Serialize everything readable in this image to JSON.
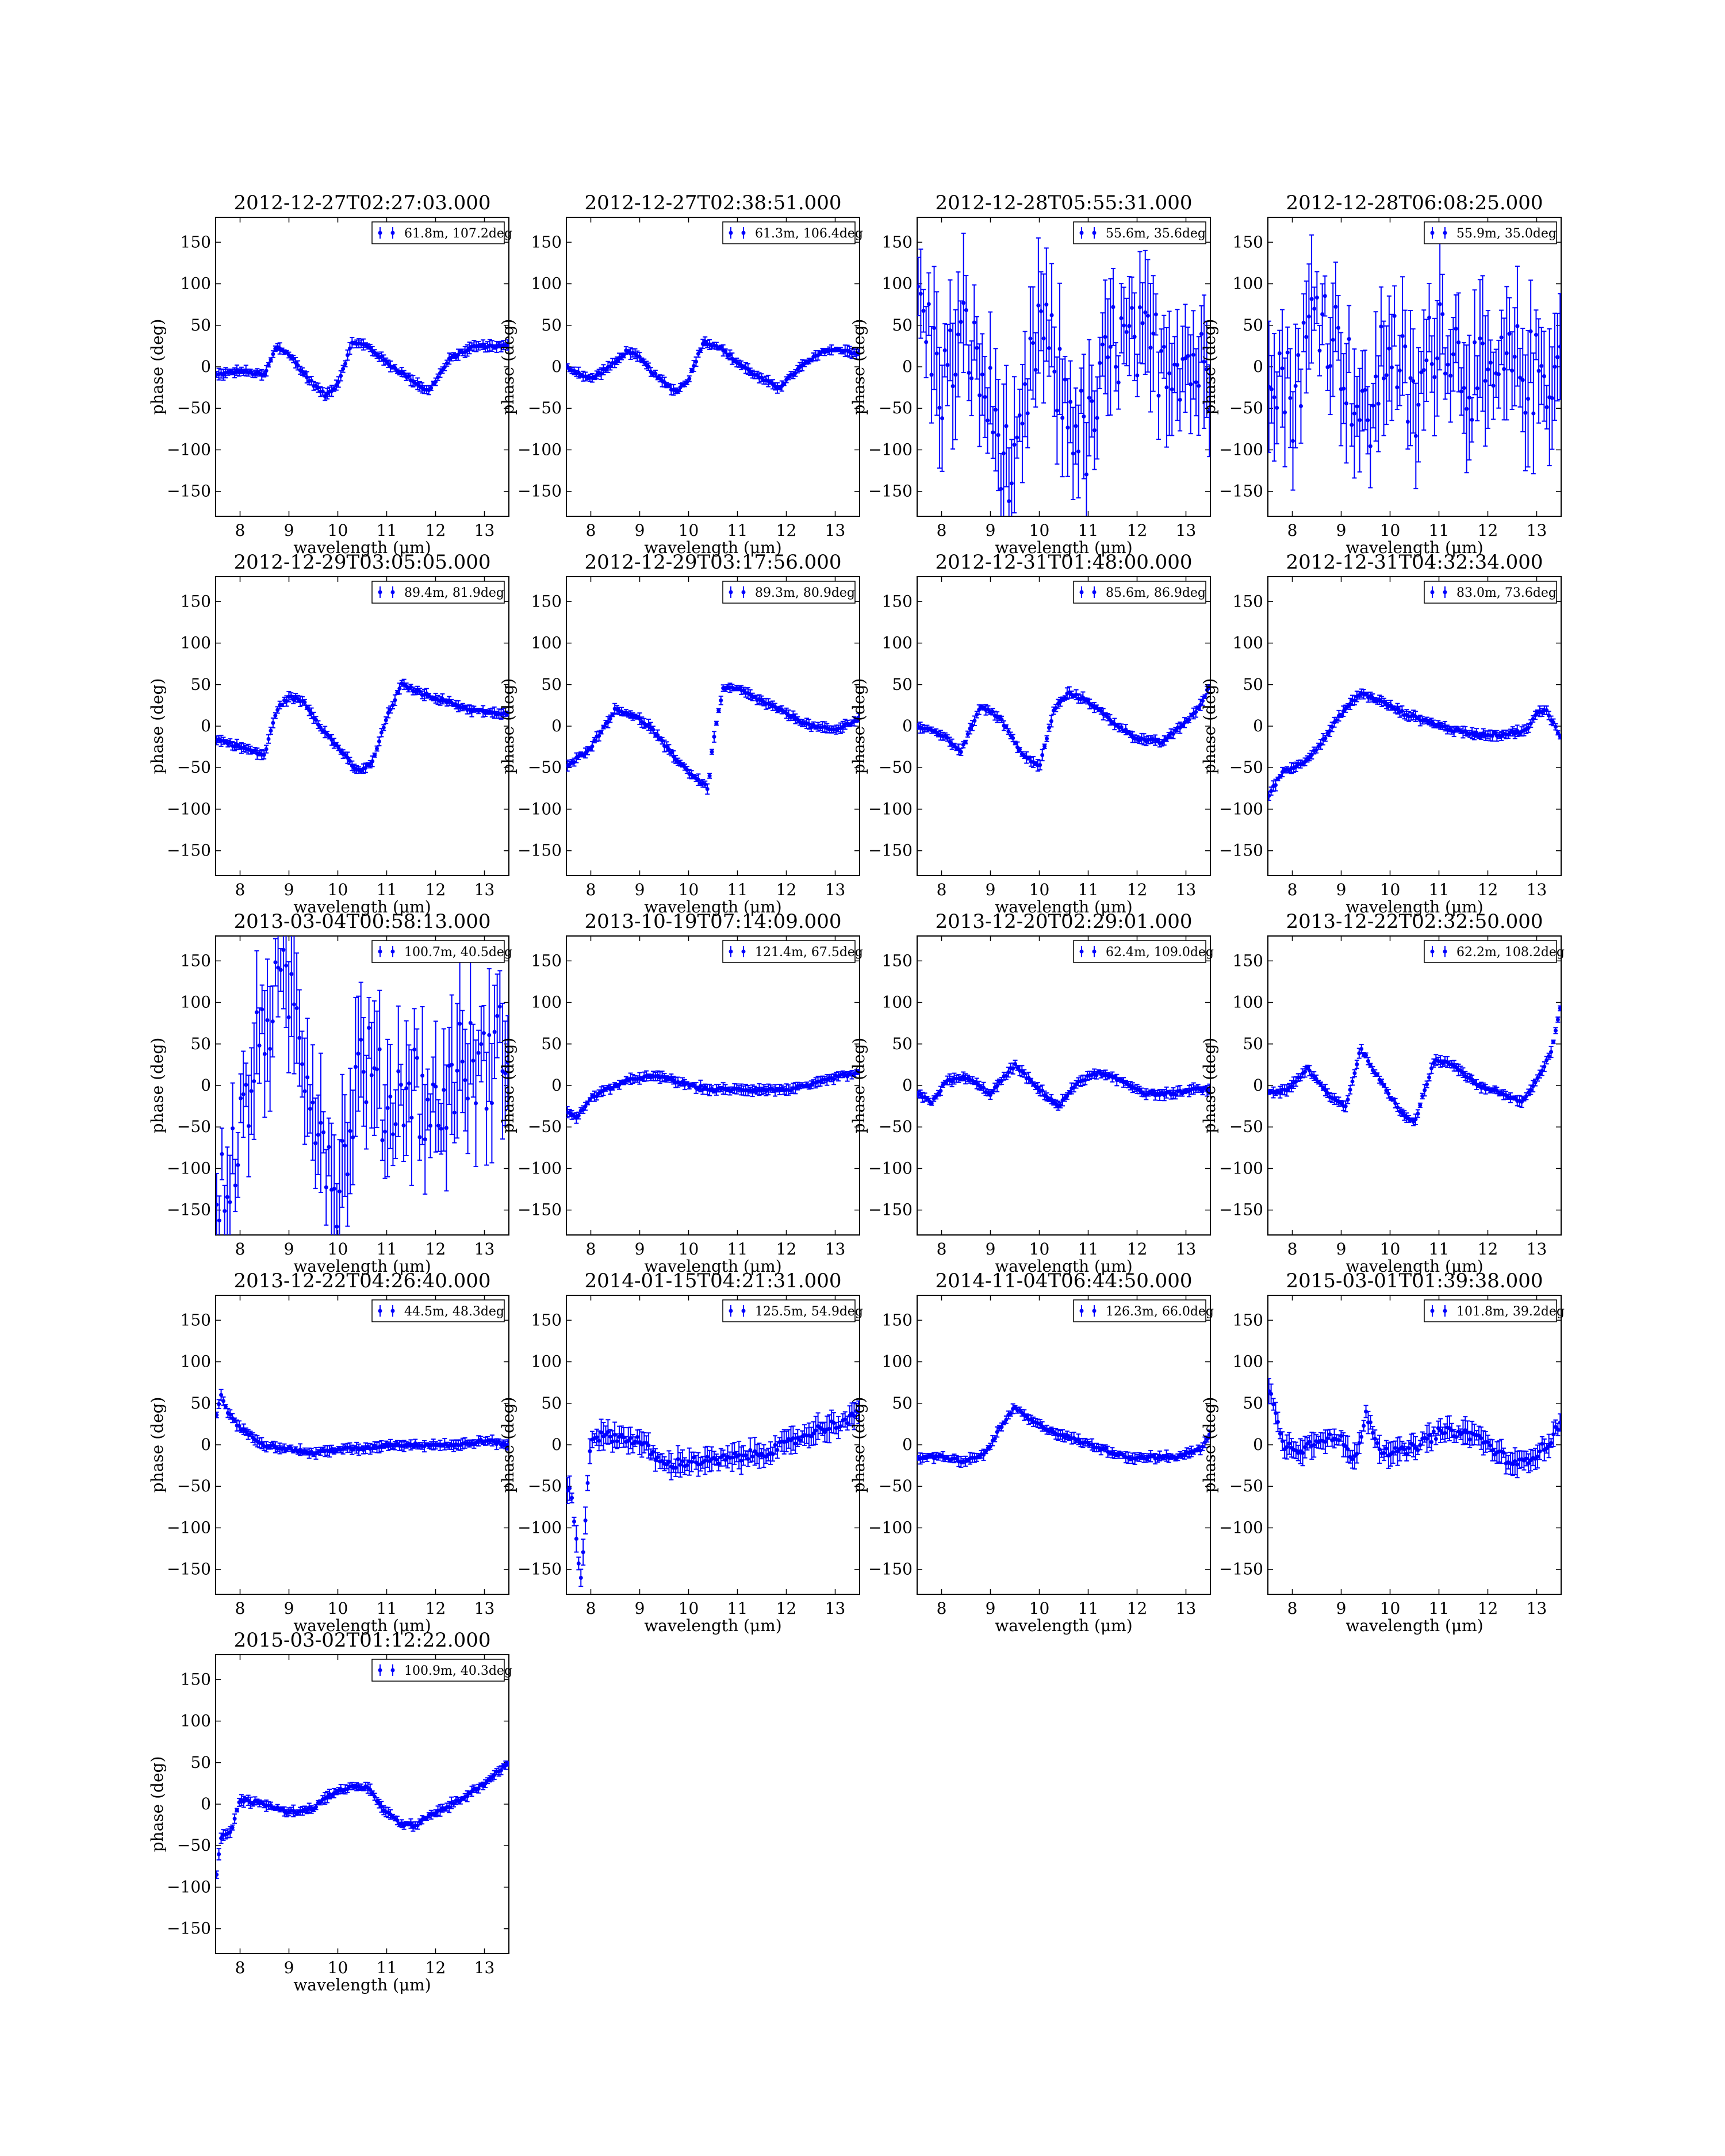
{
  "figure": {
    "xlabel": "wavelength (μm)",
    "ylabel": "phase (deg)",
    "series_color": "#0000ff",
    "xlim": [
      7.5,
      13.5
    ],
    "ylim": [
      -180,
      180
    ],
    "xticks": [
      8,
      9,
      10,
      11,
      12,
      13
    ],
    "yticks": [
      -150,
      -100,
      -50,
      0,
      50,
      100,
      150
    ]
  },
  "chart_data": [
    {
      "type": "scatter",
      "title": "2012-12-27T02:27:03.000",
      "legend": "61.8m, 107.2deg",
      "legend_position": "top-right",
      "error_bars": true,
      "noise": "low",
      "x": [
        7.5,
        8.0,
        8.5,
        8.75,
        9.0,
        9.4,
        9.75,
        10.0,
        10.3,
        10.6,
        11.0,
        11.5,
        11.85,
        12.3,
        12.8,
        13.2,
        13.5
      ],
      "y": [
        -10,
        -5,
        -10,
        25,
        15,
        -15,
        -35,
        -20,
        30,
        25,
        5,
        -15,
        -30,
        10,
        25,
        25,
        25
      ]
    },
    {
      "type": "scatter",
      "title": "2012-12-27T02:38:51.000",
      "legend": "61.3m, 106.4deg",
      "legend_position": "top-right",
      "error_bars": true,
      "noise": "low",
      "x": [
        7.5,
        8.0,
        8.5,
        8.75,
        9.0,
        9.4,
        9.75,
        10.0,
        10.3,
        10.6,
        11.0,
        11.5,
        11.85,
        12.3,
        12.8,
        13.2,
        13.5
      ],
      "y": [
        0,
        -15,
        5,
        20,
        10,
        -15,
        -30,
        -15,
        30,
        25,
        5,
        -15,
        -25,
        0,
        20,
        20,
        15
      ]
    },
    {
      "type": "scatter",
      "title": "2012-12-28T05:55:31.000",
      "legend": "55.6m, 35.6deg",
      "legend_position": "top-right",
      "error_bars": true,
      "noise": "high",
      "x": [
        7.5,
        8.0,
        8.5,
        9.0,
        9.5,
        10.0,
        10.5,
        11.0,
        11.5,
        12.0,
        12.5,
        13.0,
        13.5
      ],
      "y": [
        90,
        -20,
        40,
        -50,
        -150,
        60,
        -40,
        -90,
        30,
        20,
        20,
        10,
        -10
      ]
    },
    {
      "type": "scatter",
      "title": "2012-12-28T06:08:25.000",
      "legend": "55.9m, 35.0deg",
      "legend_position": "top-right",
      "error_bars": true,
      "noise": "high",
      "x": [
        7.5,
        8.0,
        8.5,
        9.0,
        9.5,
        10.0,
        10.5,
        11.0,
        11.5,
        12.0,
        12.5,
        13.0,
        13.5
      ],
      "y": [
        30,
        -40,
        80,
        20,
        -80,
        40,
        -60,
        60,
        0,
        -30,
        0,
        -10,
        0
      ]
    },
    {
      "type": "scatter",
      "title": "2012-12-29T03:05:05.000",
      "legend": "89.4m, 81.9deg",
      "legend_position": "top-right",
      "error_bars": true,
      "noise": "low",
      "x": [
        7.5,
        8.0,
        8.5,
        8.75,
        9.0,
        9.3,
        9.7,
        10.0,
        10.4,
        10.7,
        11.0,
        11.3,
        11.7,
        12.2,
        12.7,
        13.2,
        13.5
      ],
      "y": [
        -15,
        -25,
        -35,
        20,
        35,
        30,
        -5,
        -25,
        -55,
        -45,
        10,
        50,
        40,
        30,
        20,
        15,
        15
      ]
    },
    {
      "type": "scatter",
      "title": "2012-12-29T03:17:56.000",
      "legend": "89.3m, 80.9deg",
      "legend_position": "top-right",
      "error_bars": true,
      "noise": "low",
      "x": [
        7.5,
        8.0,
        8.5,
        8.8,
        9.2,
        9.6,
        10.0,
        10.4,
        10.5,
        10.7,
        11.0,
        11.5,
        12.0,
        12.5,
        13.0,
        13.5
      ],
      "y": [
        -50,
        -25,
        20,
        15,
        0,
        -30,
        -55,
        -75,
        -20,
        45,
        45,
        30,
        15,
        0,
        -5,
        10
      ]
    },
    {
      "type": "scatter",
      "title": "2012-12-31T01:48:00.000",
      "legend": "85.6m, 86.9deg",
      "legend_position": "top-right",
      "error_bars": true,
      "noise": "low",
      "x": [
        7.5,
        8.0,
        8.4,
        8.8,
        9.2,
        9.6,
        10.0,
        10.3,
        10.6,
        11.0,
        11.5,
        12.0,
        12.5,
        13.0,
        13.3,
        13.5
      ],
      "y": [
        0,
        -10,
        -30,
        25,
        10,
        -30,
        -50,
        20,
        40,
        30,
        5,
        -15,
        -20,
        5,
        25,
        50
      ]
    },
    {
      "type": "scatter",
      "title": "2012-12-31T04:32:34.000",
      "legend": "83.0m, 73.6deg",
      "legend_position": "top-right",
      "error_bars": true,
      "noise": "low",
      "x": [
        7.5,
        7.8,
        8.2,
        8.6,
        9.0,
        9.4,
        9.8,
        10.3,
        10.8,
        11.3,
        11.8,
        12.3,
        12.8,
        13.0,
        13.2,
        13.5
      ],
      "y": [
        -85,
        -55,
        -45,
        -20,
        15,
        40,
        30,
        15,
        5,
        -5,
        -10,
        -10,
        -5,
        15,
        20,
        -15
      ]
    },
    {
      "type": "scatter",
      "title": "2013-03-04T00:58:13.000",
      "legend": "100.7m, 40.5deg",
      "legend_position": "top-right",
      "error_bars": true,
      "noise": "high",
      "x": [
        7.5,
        8.0,
        8.5,
        9.0,
        9.5,
        10.0,
        10.5,
        11.0,
        11.5,
        12.0,
        12.5,
        13.0,
        13.5
      ],
      "y": [
        -150,
        -60,
        80,
        120,
        -10,
        -130,
        40,
        -30,
        10,
        -40,
        30,
        20,
        60
      ]
    },
    {
      "type": "scatter",
      "title": "2013-10-19T07:14:09.000",
      "legend": "121.4m, 67.5deg",
      "legend_position": "top-right",
      "error_bars": true,
      "noise": "low",
      "x": [
        7.5,
        7.7,
        8.0,
        8.5,
        9.0,
        9.5,
        10.0,
        10.5,
        11.0,
        11.5,
        12.0,
        12.5,
        13.0,
        13.5
      ],
      "y": [
        -30,
        -40,
        -15,
        0,
        10,
        10,
        0,
        -5,
        -5,
        -5,
        -5,
        0,
        10,
        15
      ]
    },
    {
      "type": "scatter",
      "title": "2013-12-20T02:29:01.000",
      "legend": "62.4m, 109.0deg",
      "legend_position": "top-right",
      "error_bars": true,
      "noise": "low",
      "x": [
        7.5,
        7.8,
        8.1,
        8.5,
        9.0,
        9.5,
        9.9,
        10.4,
        10.8,
        11.2,
        11.7,
        12.2,
        12.7,
        13.2,
        13.5
      ],
      "y": [
        -10,
        -20,
        5,
        10,
        -10,
        25,
        0,
        -25,
        5,
        15,
        5,
        -10,
        -10,
        -5,
        -5
      ]
    },
    {
      "type": "scatter",
      "title": "2013-12-22T02:32:50.000",
      "legend": "62.2m, 108.2deg",
      "legend_position": "top-right",
      "error_bars": true,
      "noise": "low",
      "x": [
        7.5,
        7.9,
        8.3,
        8.8,
        9.1,
        9.4,
        9.8,
        10.2,
        10.5,
        10.9,
        11.3,
        11.8,
        12.3,
        12.7,
        13.0,
        13.3,
        13.5
      ],
      "y": [
        -10,
        -5,
        20,
        -15,
        -25,
        45,
        5,
        -30,
        -45,
        30,
        25,
        0,
        -10,
        -20,
        5,
        40,
        100
      ]
    },
    {
      "type": "scatter",
      "title": "2013-12-22T04:26:40.000",
      "legend": "44.5m, 48.3deg",
      "legend_position": "top-right",
      "error_bars": true,
      "noise": "low",
      "x": [
        7.5,
        7.6,
        7.75,
        8.0,
        8.5,
        9.0,
        9.5,
        10.0,
        10.5,
        11.0,
        11.5,
        12.0,
        12.5,
        13.0,
        13.5
      ],
      "y": [
        30,
        60,
        40,
        20,
        0,
        -5,
        -10,
        -5,
        -5,
        0,
        0,
        0,
        0,
        5,
        0
      ]
    },
    {
      "type": "scatter",
      "title": "2014-01-15T04:21:31.000",
      "legend": "125.5m, 54.9deg",
      "legend_position": "top-right",
      "error_bars": true,
      "noise": "moderate",
      "x": [
        7.5,
        7.6,
        7.8,
        8.0,
        8.5,
        9.0,
        9.5,
        10.0,
        10.5,
        11.0,
        11.5,
        12.0,
        12.5,
        13.0,
        13.3,
        13.5
      ],
      "y": [
        -50,
        -60,
        -165,
        10,
        10,
        5,
        -25,
        -20,
        -20,
        -15,
        -10,
        0,
        15,
        25,
        30,
        40
      ]
    },
    {
      "type": "scatter",
      "title": "2014-11-04T06:44:50.000",
      "legend": "126.3m, 66.0deg",
      "legend_position": "top-right",
      "error_bars": true,
      "noise": "low",
      "x": [
        7.5,
        8.0,
        8.5,
        8.9,
        9.2,
        9.5,
        9.8,
        10.3,
        10.8,
        11.3,
        11.8,
        12.3,
        12.8,
        13.3,
        13.5
      ],
      "y": [
        -15,
        -15,
        -20,
        -10,
        20,
        45,
        30,
        15,
        5,
        -5,
        -15,
        -15,
        -15,
        -5,
        15
      ]
    },
    {
      "type": "scatter",
      "title": "2015-03-01T01:39:38.000",
      "legend": "101.8m, 39.2deg",
      "legend_position": "top-right",
      "error_bars": true,
      "noise": "moderate",
      "x": [
        7.5,
        7.8,
        8.2,
        8.6,
        9.0,
        9.3,
        9.5,
        9.8,
        10.2,
        10.6,
        11.0,
        11.4,
        11.8,
        12.2,
        12.6,
        13.0,
        13.3,
        13.5
      ],
      "y": [
        75,
        0,
        -5,
        10,
        5,
        -20,
        40,
        -5,
        -10,
        0,
        15,
        15,
        10,
        -10,
        -25,
        -10,
        5,
        30
      ]
    },
    {
      "type": "scatter",
      "title": "2015-03-02T01:12:22.000",
      "legend": "100.9m, 40.3deg",
      "legend_position": "top-right",
      "error_bars": true,
      "noise": "low",
      "x": [
        7.5,
        7.6,
        7.8,
        8.0,
        8.5,
        9.0,
        9.5,
        9.8,
        10.2,
        10.6,
        11.0,
        11.3,
        11.6,
        12.0,
        12.5,
        13.0,
        13.3,
        13.5
      ],
      "y": [
        -95,
        -40,
        -35,
        5,
        0,
        -10,
        -5,
        10,
        20,
        20,
        -10,
        -25,
        -25,
        -10,
        5,
        25,
        40,
        50
      ]
    }
  ]
}
